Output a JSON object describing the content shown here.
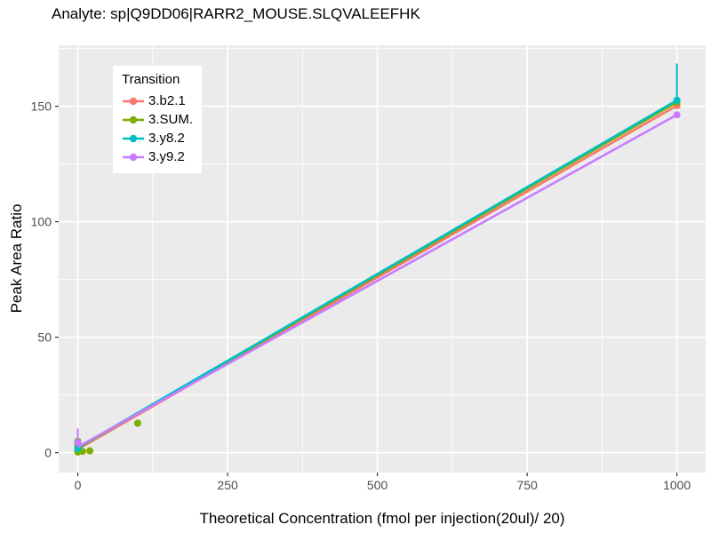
{
  "header": {
    "title": "Analyte: sp|Q9DD06|RARR2_MOUSE.SLQVALEEFHK"
  },
  "chart_data": {
    "type": "line",
    "title": "Analyte: sp|Q9DD06|RARR2_MOUSE.SLQVALEEFHK",
    "xlabel": "Theoretical Concentration (fmol per injection(20ul)/ 20)",
    "ylabel": "Peak Area Ratio",
    "xlim": [
      -32,
      1048
    ],
    "ylim": [
      -8.6,
      176.4
    ],
    "x_major_ticks": [
      0,
      250,
      500,
      750,
      1000
    ],
    "x_minor_ticks": [
      125,
      375,
      625,
      875
    ],
    "y_major_ticks": [
      0,
      50,
      100,
      150
    ],
    "y_minor_ticks": [
      25,
      75,
      125,
      175
    ],
    "grid": true,
    "panel_bg": "#EBEBEB",
    "grid_color": "#FFFFFF",
    "tick_color": "#333333",
    "tick_label_color": "#4D4D4D",
    "legend": {
      "title": "Transition",
      "position": "inside-top-left",
      "entries": [
        "3.b2.1",
        "3.SUM.",
        "3.y8.2",
        "3.y9.2"
      ]
    },
    "series": [
      {
        "name": "3.b2.1",
        "color": "#F8766D",
        "line": [
          [
            0,
            1.5
          ],
          [
            1000,
            150.3
          ]
        ],
        "points": [
          [
            0,
            1
          ],
          [
            1000,
            150.3
          ]
        ],
        "errorbars": []
      },
      {
        "name": "3.SUM.",
        "color": "#7CAE00",
        "line": [
          [
            0,
            2
          ],
          [
            1000,
            151.8
          ]
        ],
        "points": [
          [
            0,
            0.3
          ],
          [
            0,
            1.2
          ],
          [
            0,
            2.2
          ],
          [
            0,
            3.5
          ],
          [
            0,
            5
          ],
          [
            8,
            0.6
          ],
          [
            20,
            0.8
          ],
          [
            100,
            12.8
          ],
          [
            1000,
            151.8
          ]
        ],
        "errorbars": []
      },
      {
        "name": "3.y8.2",
        "color": "#00BFC4",
        "line": [
          [
            0,
            2.2
          ],
          [
            1000,
            152.6
          ]
        ],
        "points": [
          [
            0,
            1.8
          ],
          [
            1000,
            152.6
          ]
        ],
        "errorbars": [
          {
            "x": 1000,
            "ymin": 152,
            "ymax": 168.5
          }
        ]
      },
      {
        "name": "3.y9.2",
        "color": "#C77CFF",
        "line": [
          [
            0,
            2.5
          ],
          [
            1000,
            146.3
          ]
        ],
        "points": [
          [
            0,
            4.5
          ],
          [
            1000,
            146.3
          ]
        ],
        "errorbars": [
          {
            "x": 0,
            "ymin": 4.5,
            "ymax": 10.5
          }
        ]
      }
    ]
  }
}
